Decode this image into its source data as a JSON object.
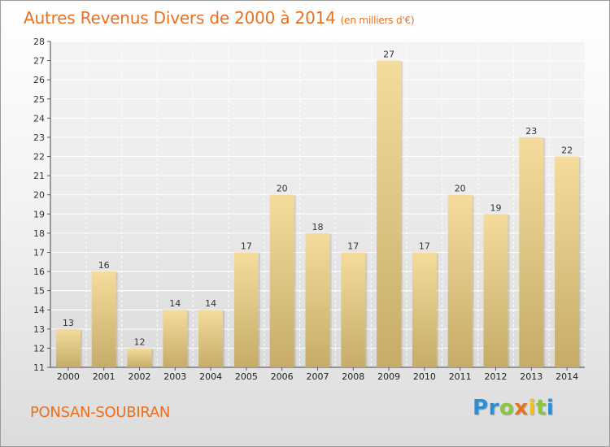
{
  "title": "Autres Revenus Divers de 2000 à 2014",
  "subtitle": "(en milliers d'€)",
  "location": "PONSAN-SOUBIRAN",
  "logo": {
    "letters": [
      "P",
      "r",
      "o",
      "x",
      "i",
      "t",
      "i"
    ],
    "colors": [
      "#2a8fd6",
      "#2a8fd6",
      "#8cc63f",
      "#e8701e",
      "#f2c21b",
      "#8cc63f",
      "#2a8fd6"
    ]
  },
  "colors": {
    "accent": "#e8701e",
    "bar_top": "#f5dc9c",
    "bar_bottom": "#c6ac68",
    "grid": "#ffffff"
  },
  "chart_data": {
    "type": "bar",
    "title": "Autres Revenus Divers de 2000 à 2014",
    "subtitle": "(en milliers d'€)",
    "xlabel": "",
    "ylabel": "",
    "ylim": [
      11,
      28
    ],
    "yticks": [
      11,
      12,
      13,
      14,
      15,
      16,
      17,
      18,
      19,
      20,
      21,
      22,
      23,
      24,
      25,
      26,
      27,
      28
    ],
    "categories": [
      "2000",
      "2001",
      "2002",
      "2003",
      "2004",
      "2005",
      "2006",
      "2007",
      "2008",
      "2009",
      "2010",
      "2011",
      "2012",
      "2013",
      "2014"
    ],
    "values": [
      13,
      16,
      12,
      14,
      14,
      17,
      20,
      18,
      17,
      27,
      17,
      20,
      19,
      23,
      22
    ],
    "grid": true,
    "data_labels": true
  }
}
